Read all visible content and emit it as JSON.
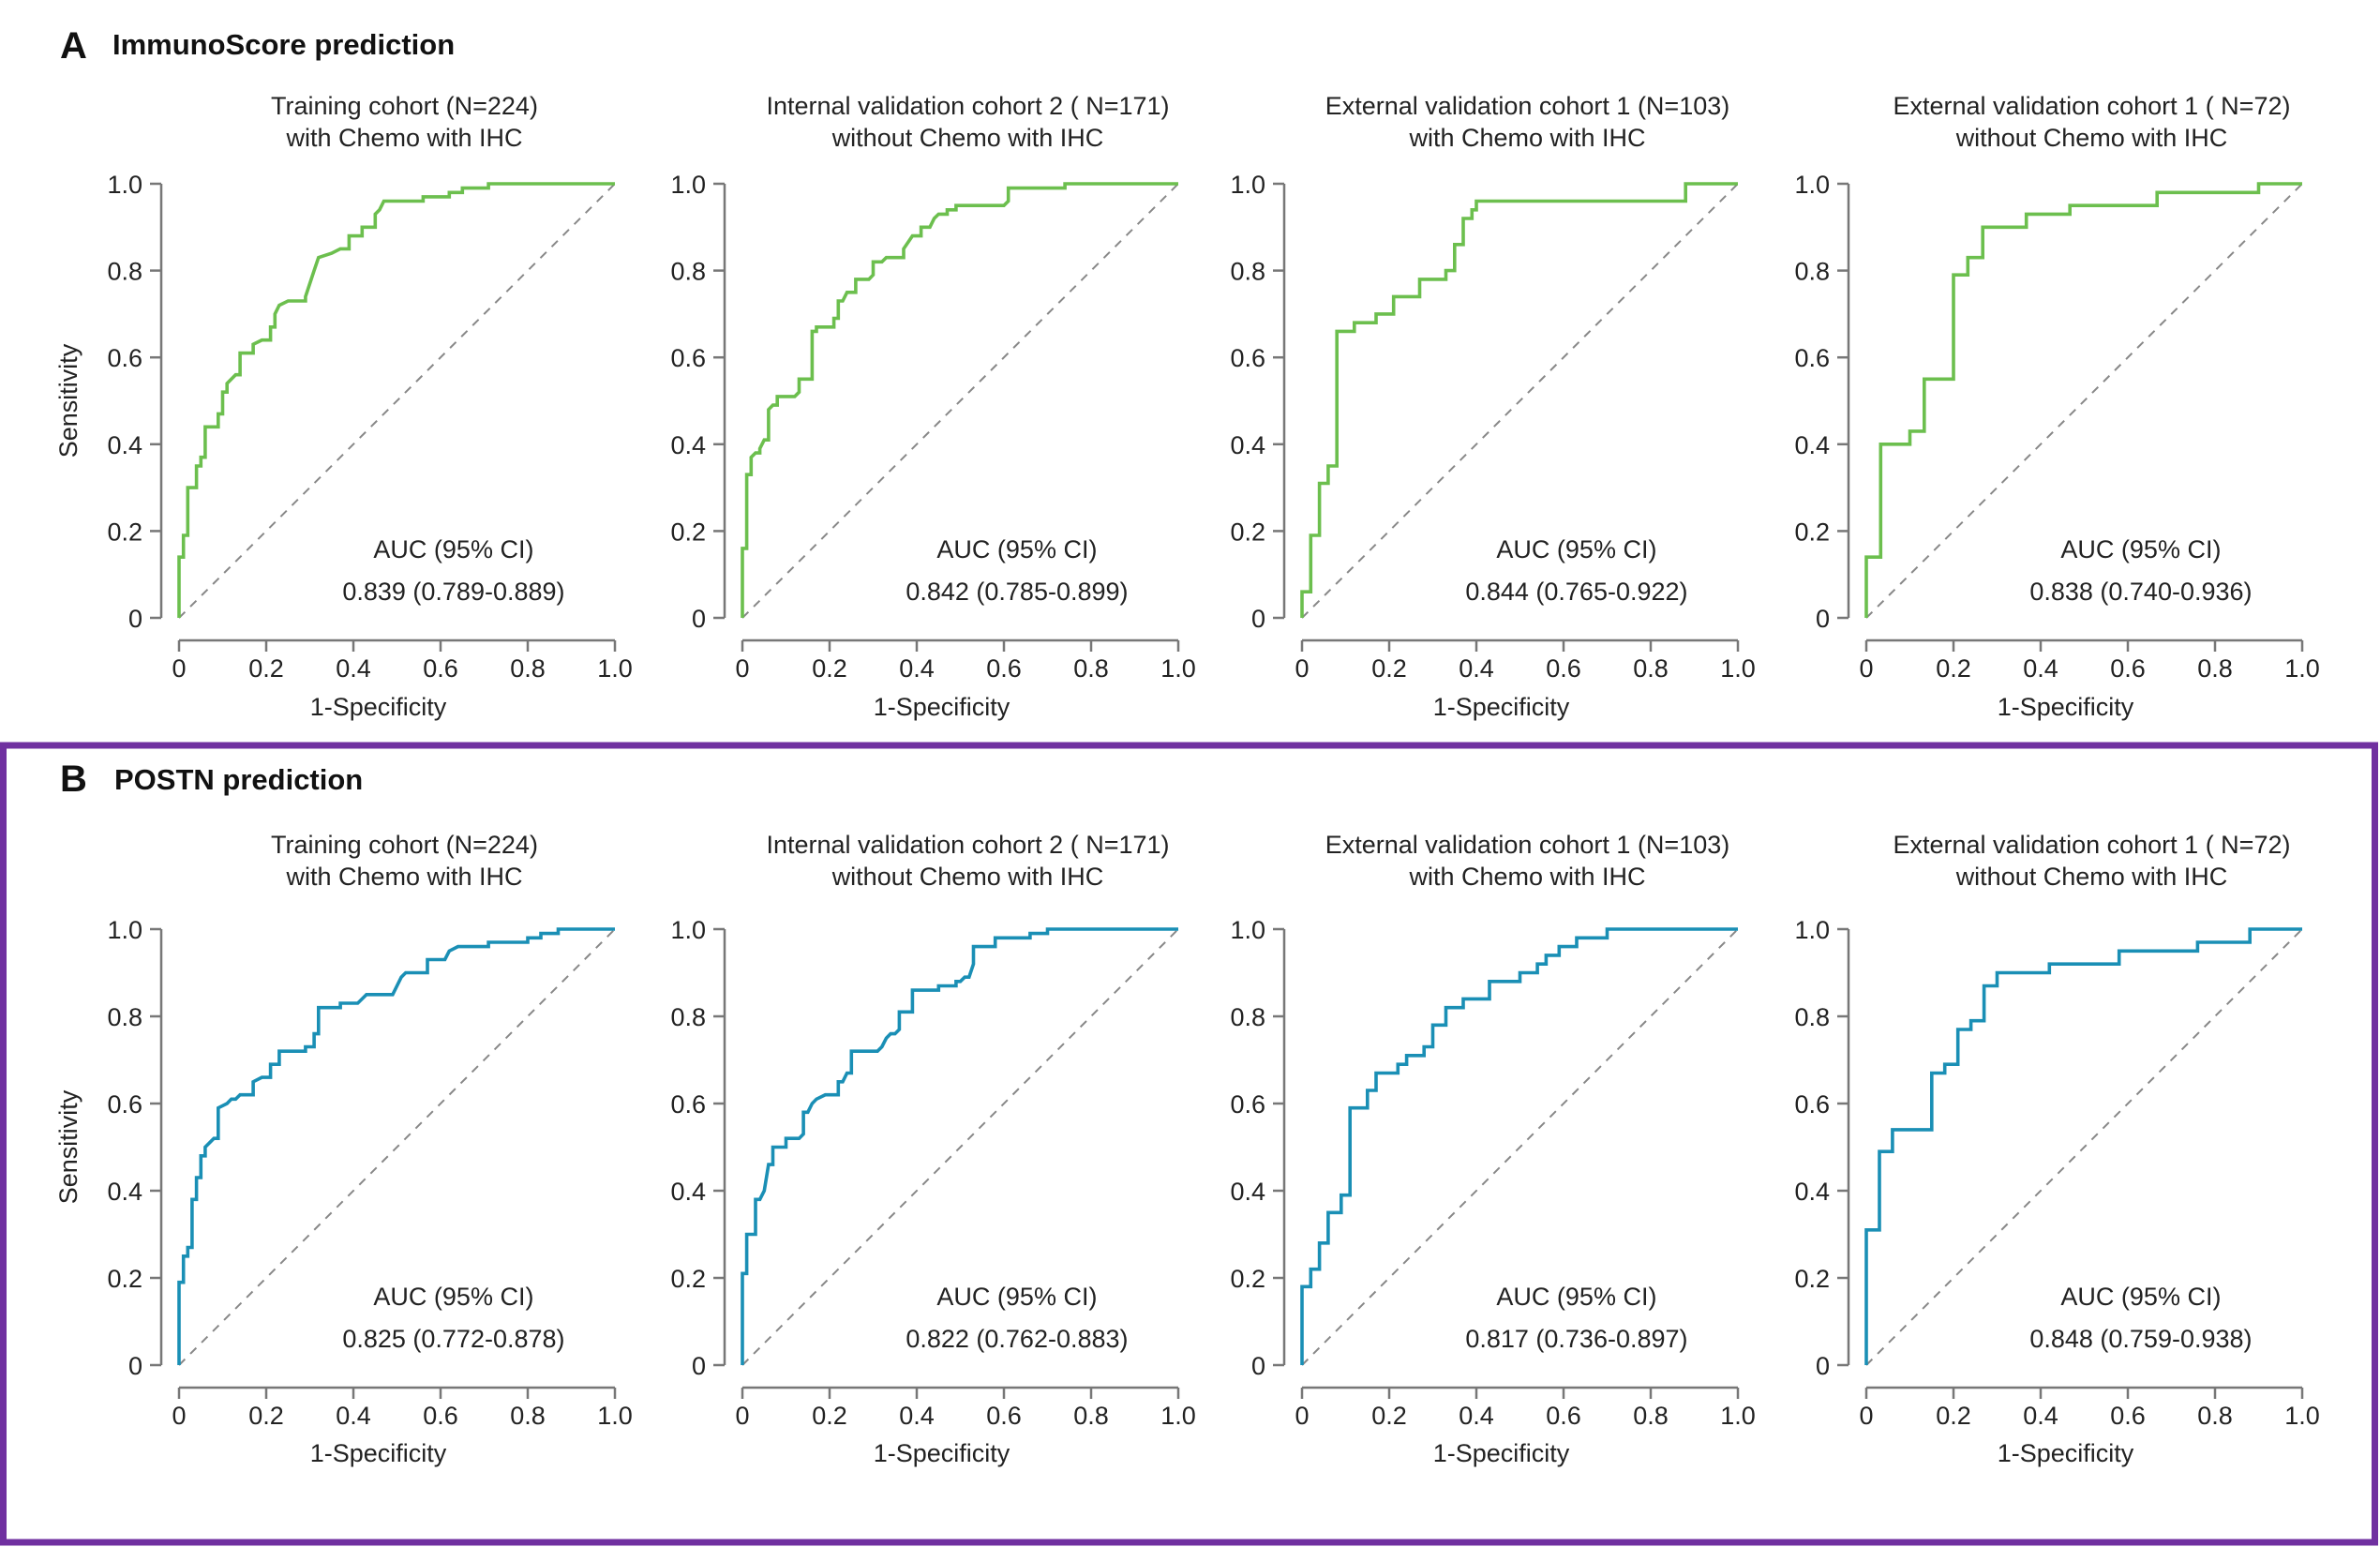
{
  "figure": {
    "panels": [
      {
        "letter": "A",
        "title": "ImmunoScore prediction",
        "color": "#6cbf4e"
      },
      {
        "letter": "B",
        "title": "POSTN prediction",
        "color": "#1a8fb5"
      }
    ],
    "highlight_color": "#7030a0",
    "diagonal_color": "#888888"
  },
  "chart_data": [
    {
      "type": "line",
      "panel": "A",
      "title": [
        "Training cohort (N=224)",
        "with Chemo with IHC"
      ],
      "xlabel": "1-Specificity",
      "ylabel": "Sensitivity",
      "xlim": [
        0,
        1
      ],
      "ylim": [
        0,
        1
      ],
      "xticks": [
        "0",
        "0.2",
        "0.4",
        "0.6",
        "0.8",
        "1.0"
      ],
      "yticks": [
        "0",
        "0.2",
        "0.4",
        "0.6",
        "0.8",
        "1.0"
      ],
      "grid": false,
      "reference_line": "diagonal-dashed",
      "annotation": {
        "header": "AUC (95% CI)",
        "value": "0.839 (0.789-0.889)"
      },
      "series": [
        {
          "name": "ImmunoScore",
          "color": "#6cbf4e",
          "x": [
            0,
            0,
            0.01,
            0.01,
            0.02,
            0.02,
            0.04,
            0.04,
            0.05,
            0.05,
            0.06,
            0.06,
            0.09,
            0.09,
            0.1,
            0.1,
            0.11,
            0.11,
            0.13,
            0.14,
            0.14,
            0.17,
            0.17,
            0.19,
            0.21,
            0.21,
            0.22,
            0.22,
            0.23,
            0.25,
            0.29,
            0.29,
            0.3,
            0.31,
            0.32,
            0.35,
            0.37,
            0.39,
            0.39,
            0.42,
            0.42,
            0.45,
            0.45,
            0.46,
            0.47,
            0.56,
            0.56,
            0.62,
            0.62,
            0.65,
            0.65,
            0.71,
            0.71,
            1.0
          ],
          "y": [
            0,
            0.14,
            0.14,
            0.19,
            0.19,
            0.3,
            0.3,
            0.35,
            0.35,
            0.37,
            0.37,
            0.44,
            0.44,
            0.47,
            0.47,
            0.52,
            0.52,
            0.54,
            0.56,
            0.56,
            0.61,
            0.61,
            0.63,
            0.64,
            0.64,
            0.67,
            0.67,
            0.7,
            0.72,
            0.73,
            0.73,
            0.74,
            0.77,
            0.8,
            0.83,
            0.84,
            0.85,
            0.85,
            0.88,
            0.88,
            0.9,
            0.9,
            0.93,
            0.94,
            0.96,
            0.96,
            0.97,
            0.97,
            0.98,
            0.98,
            0.99,
            0.99,
            1.0,
            1.0
          ]
        }
      ]
    },
    {
      "type": "line",
      "panel": "A",
      "title": [
        "Internal validation cohort 2 ( N=171)",
        "without Chemo with IHC"
      ],
      "xlabel": "1-Specificity",
      "ylabel": "",
      "xlim": [
        0,
        1
      ],
      "ylim": [
        0,
        1
      ],
      "xticks": [
        "0",
        "0.2",
        "0.4",
        "0.6",
        "0.8",
        "1.0"
      ],
      "yticks": [
        "0",
        "0.2",
        "0.4",
        "0.6",
        "0.8",
        "1.0"
      ],
      "grid": false,
      "reference_line": "diagonal-dashed",
      "annotation": {
        "header": "AUC (95% CI)",
        "value": "0.842 (0.785-0.899)"
      },
      "series": [
        {
          "name": "ImmunoScore",
          "color": "#6cbf4e",
          "x": [
            0,
            0,
            0.01,
            0.01,
            0.02,
            0.02,
            0.03,
            0.04,
            0.04,
            0.05,
            0.06,
            0.06,
            0.07,
            0.08,
            0.08,
            0.12,
            0.13,
            0.13,
            0.16,
            0.16,
            0.17,
            0.17,
            0.21,
            0.21,
            0.22,
            0.22,
            0.23,
            0.24,
            0.26,
            0.26,
            0.29,
            0.3,
            0.3,
            0.32,
            0.33,
            0.37,
            0.37,
            0.39,
            0.41,
            0.41,
            0.43,
            0.44,
            0.45,
            0.47,
            0.47,
            0.49,
            0.49,
            0.6,
            0.61,
            0.61,
            0.74,
            0.74,
            1.0
          ],
          "y": [
            0,
            0.16,
            0.16,
            0.33,
            0.33,
            0.37,
            0.38,
            0.38,
            0.39,
            0.41,
            0.41,
            0.48,
            0.49,
            0.49,
            0.51,
            0.51,
            0.52,
            0.55,
            0.55,
            0.66,
            0.66,
            0.67,
            0.67,
            0.69,
            0.69,
            0.73,
            0.73,
            0.75,
            0.75,
            0.78,
            0.78,
            0.79,
            0.82,
            0.82,
            0.83,
            0.83,
            0.85,
            0.88,
            0.88,
            0.9,
            0.9,
            0.92,
            0.93,
            0.93,
            0.94,
            0.94,
            0.95,
            0.95,
            0.96,
            0.99,
            0.99,
            1.0,
            1.0
          ]
        }
      ]
    },
    {
      "type": "line",
      "panel": "A",
      "title": [
        "External validation cohort 1 (N=103)",
        "with Chemo with IHC"
      ],
      "xlabel": "1-Specificity",
      "ylabel": "",
      "xlim": [
        0,
        1
      ],
      "ylim": [
        0,
        1
      ],
      "xticks": [
        "0",
        "0.2",
        "0.4",
        "0.6",
        "0.8",
        "1.0"
      ],
      "yticks": [
        "0",
        "0.2",
        "0.4",
        "0.6",
        "0.8",
        "1.0"
      ],
      "grid": false,
      "reference_line": "diagonal-dashed",
      "annotation": {
        "header": "AUC (95% CI)",
        "value": "0.844 (0.765-0.922)"
      },
      "series": [
        {
          "name": "ImmunoScore",
          "color": "#6cbf4e",
          "x": [
            0,
            0,
            0.02,
            0.02,
            0.04,
            0.04,
            0.06,
            0.06,
            0.08,
            0.08,
            0.12,
            0.12,
            0.17,
            0.17,
            0.21,
            0.21,
            0.27,
            0.27,
            0.33,
            0.33,
            0.35,
            0.35,
            0.37,
            0.37,
            0.39,
            0.39,
            0.4,
            0.4,
            0.88,
            0.88,
            1.0
          ],
          "y": [
            0,
            0.06,
            0.06,
            0.19,
            0.19,
            0.31,
            0.31,
            0.35,
            0.35,
            0.66,
            0.66,
            0.68,
            0.68,
            0.7,
            0.7,
            0.74,
            0.74,
            0.78,
            0.78,
            0.8,
            0.8,
            0.86,
            0.86,
            0.92,
            0.92,
            0.94,
            0.94,
            0.96,
            0.96,
            1.0,
            1.0
          ]
        }
      ]
    },
    {
      "type": "line",
      "panel": "A",
      "title": [
        "External validation cohort 1 ( N=72)",
        "without Chemo with IHC"
      ],
      "xlabel": "1-Specificity",
      "ylabel": "",
      "xlim": [
        0,
        1
      ],
      "ylim": [
        0,
        1
      ],
      "xticks": [
        "0",
        "0.2",
        "0.4",
        "0.6",
        "0.8",
        "1.0"
      ],
      "yticks": [
        "0",
        "0.2",
        "0.4",
        "0.6",
        "0.8",
        "1.0"
      ],
      "grid": false,
      "reference_line": "diagonal-dashed",
      "annotation": {
        "header": "AUC (95% CI)",
        "value": "0.838 (0.740-0.936)"
      },
      "series": [
        {
          "name": "ImmunoScore",
          "color": "#6cbf4e",
          "x": [
            0,
            0,
            0.033,
            0.033,
            0.1,
            0.1,
            0.133,
            0.133,
            0.2,
            0.2,
            0.233,
            0.233,
            0.267,
            0.267,
            0.367,
            0.367,
            0.467,
            0.467,
            0.667,
            0.667,
            0.9,
            0.9,
            1.0
          ],
          "y": [
            0,
            0.14,
            0.14,
            0.4,
            0.4,
            0.43,
            0.43,
            0.55,
            0.55,
            0.79,
            0.79,
            0.83,
            0.83,
            0.9,
            0.9,
            0.93,
            0.93,
            0.95,
            0.95,
            0.98,
            0.98,
            1.0,
            1.0
          ]
        }
      ]
    },
    {
      "type": "line",
      "panel": "B",
      "title": [
        "Training cohort (N=224)",
        "with Chemo with IHC"
      ],
      "xlabel": "1-Specificity",
      "ylabel": "Sensitivity",
      "xlim": [
        0,
        1
      ],
      "ylim": [
        0,
        1
      ],
      "xticks": [
        "0",
        "0.2",
        "0.4",
        "0.6",
        "0.8",
        "1.0"
      ],
      "yticks": [
        "0",
        "0.2",
        "0.4",
        "0.6",
        "0.8",
        "1.0"
      ],
      "grid": false,
      "reference_line": "diagonal-dashed",
      "annotation": {
        "header": "AUC (95% CI)",
        "value": "0.825 (0.772-0.878)"
      },
      "series": [
        {
          "name": "POSTN",
          "color": "#1a8fb5",
          "x": [
            0,
            0,
            0.01,
            0.01,
            0.02,
            0.02,
            0.03,
            0.03,
            0.04,
            0.04,
            0.05,
            0.05,
            0.06,
            0.06,
            0.07,
            0.08,
            0.09,
            0.09,
            0.11,
            0.12,
            0.13,
            0.14,
            0.17,
            0.17,
            0.19,
            0.21,
            0.21,
            0.23,
            0.23,
            0.29,
            0.29,
            0.31,
            0.31,
            0.32,
            0.32,
            0.37,
            0.37,
            0.41,
            0.42,
            0.43,
            0.49,
            0.5,
            0.51,
            0.52,
            0.57,
            0.57,
            0.61,
            0.62,
            0.64,
            0.71,
            0.71,
            0.8,
            0.8,
            0.83,
            0.83,
            0.87,
            0.87,
            1.0
          ],
          "y": [
            0,
            0.19,
            0.19,
            0.25,
            0.25,
            0.27,
            0.27,
            0.38,
            0.38,
            0.43,
            0.43,
            0.48,
            0.48,
            0.5,
            0.51,
            0.52,
            0.52,
            0.59,
            0.6,
            0.61,
            0.61,
            0.62,
            0.62,
            0.65,
            0.66,
            0.66,
            0.69,
            0.69,
            0.72,
            0.72,
            0.73,
            0.73,
            0.76,
            0.76,
            0.82,
            0.82,
            0.83,
            0.83,
            0.84,
            0.85,
            0.85,
            0.87,
            0.89,
            0.9,
            0.9,
            0.93,
            0.93,
            0.95,
            0.96,
            0.96,
            0.97,
            0.97,
            0.98,
            0.98,
            0.99,
            0.99,
            1.0,
            1.0
          ]
        }
      ]
    },
    {
      "type": "line",
      "panel": "B",
      "title": [
        "Internal validation cohort 2 ( N=171)",
        "without Chemo with IHC"
      ],
      "xlabel": "1-Specificity",
      "ylabel": "",
      "xlim": [
        0,
        1
      ],
      "ylim": [
        0,
        1
      ],
      "xticks": [
        "0",
        "0.2",
        "0.4",
        "0.6",
        "0.8",
        "1.0"
      ],
      "yticks": [
        "0",
        "0.2",
        "0.4",
        "0.6",
        "0.8",
        "1.0"
      ],
      "grid": false,
      "reference_line": "diagonal-dashed",
      "annotation": {
        "header": "AUC (95% CI)",
        "value": "0.822 (0.762-0.883)"
      },
      "series": [
        {
          "name": "POSTN",
          "color": "#1a8fb5",
          "x": [
            0,
            0,
            0.01,
            0.01,
            0.03,
            0.03,
            0.04,
            0.05,
            0.05,
            0.06,
            0.07,
            0.07,
            0.1,
            0.1,
            0.13,
            0.14,
            0.14,
            0.15,
            0.16,
            0.17,
            0.19,
            0.22,
            0.22,
            0.23,
            0.24,
            0.25,
            0.25,
            0.31,
            0.32,
            0.33,
            0.34,
            0.35,
            0.36,
            0.36,
            0.39,
            0.39,
            0.45,
            0.45,
            0.49,
            0.49,
            0.5,
            0.51,
            0.52,
            0.53,
            0.53,
            0.58,
            0.58,
            0.66,
            0.66,
            0.69,
            0.7,
            0.7,
            1.0
          ],
          "y": [
            0,
            0.21,
            0.21,
            0.3,
            0.3,
            0.38,
            0.38,
            0.4,
            0.4,
            0.46,
            0.46,
            0.5,
            0.5,
            0.52,
            0.52,
            0.53,
            0.58,
            0.58,
            0.6,
            0.61,
            0.62,
            0.62,
            0.65,
            0.65,
            0.67,
            0.67,
            0.72,
            0.72,
            0.73,
            0.75,
            0.76,
            0.76,
            0.77,
            0.81,
            0.81,
            0.86,
            0.86,
            0.87,
            0.87,
            0.88,
            0.88,
            0.89,
            0.89,
            0.92,
            0.96,
            0.96,
            0.98,
            0.98,
            0.99,
            0.99,
            0.99,
            1.0,
            1.0
          ]
        }
      ]
    },
    {
      "type": "line",
      "panel": "B",
      "title": [
        "External validation cohort 1 (N=103)",
        "with Chemo with IHC"
      ],
      "xlabel": "1-Specificity",
      "ylabel": "",
      "xlim": [
        0,
        1
      ],
      "ylim": [
        0,
        1
      ],
      "xticks": [
        "0",
        "0.2",
        "0.4",
        "0.6",
        "0.8",
        "1.0"
      ],
      "yticks": [
        "0",
        "0.2",
        "0.4",
        "0.6",
        "0.8",
        "1.0"
      ],
      "grid": false,
      "reference_line": "diagonal-dashed",
      "annotation": {
        "header": "AUC (95% CI)",
        "value": "0.817 (0.736-0.897)"
      },
      "series": [
        {
          "name": "POSTN",
          "color": "#1a8fb5",
          "x": [
            0,
            0,
            0.02,
            0.02,
            0.04,
            0.04,
            0.06,
            0.06,
            0.09,
            0.09,
            0.11,
            0.11,
            0.15,
            0.15,
            0.17,
            0.17,
            0.22,
            0.22,
            0.24,
            0.24,
            0.28,
            0.28,
            0.3,
            0.3,
            0.33,
            0.33,
            0.37,
            0.37,
            0.43,
            0.43,
            0.5,
            0.5,
            0.54,
            0.54,
            0.56,
            0.56,
            0.59,
            0.59,
            0.63,
            0.63,
            0.7,
            0.7,
            1.0
          ],
          "y": [
            0,
            0.18,
            0.18,
            0.22,
            0.22,
            0.28,
            0.28,
            0.35,
            0.35,
            0.39,
            0.39,
            0.59,
            0.59,
            0.63,
            0.63,
            0.67,
            0.67,
            0.69,
            0.69,
            0.71,
            0.71,
            0.73,
            0.73,
            0.78,
            0.78,
            0.82,
            0.82,
            0.84,
            0.84,
            0.88,
            0.88,
            0.9,
            0.9,
            0.92,
            0.92,
            0.94,
            0.94,
            0.96,
            0.96,
            0.98,
            0.98,
            1.0,
            1.0
          ]
        }
      ]
    },
    {
      "type": "line",
      "panel": "B",
      "title": [
        "External validation cohort 1 ( N=72)",
        "without Chemo with IHC"
      ],
      "xlabel": "1-Specificity",
      "ylabel": "",
      "xlim": [
        0,
        1
      ],
      "ylim": [
        0,
        1
      ],
      "xticks": [
        "0",
        "0.2",
        "0.4",
        "0.6",
        "0.8",
        "1.0"
      ],
      "yticks": [
        "0",
        "0.2",
        "0.4",
        "0.6",
        "0.8",
        "1.0"
      ],
      "grid": false,
      "reference_line": "diagonal-dashed",
      "annotation": {
        "header": "AUC (95% CI)",
        "value": "0.848 (0.759-0.938)"
      },
      "series": [
        {
          "name": "POSTN",
          "color": "#1a8fb5",
          "x": [
            0,
            0,
            0.03,
            0.03,
            0.06,
            0.06,
            0.15,
            0.15,
            0.18,
            0.18,
            0.21,
            0.21,
            0.24,
            0.24,
            0.27,
            0.27,
            0.3,
            0.3,
            0.42,
            0.42,
            0.58,
            0.58,
            0.76,
            0.76,
            0.88,
            0.88,
            1.0
          ],
          "y": [
            0,
            0.31,
            0.31,
            0.49,
            0.49,
            0.54,
            0.54,
            0.67,
            0.67,
            0.69,
            0.69,
            0.77,
            0.77,
            0.79,
            0.79,
            0.87,
            0.87,
            0.9,
            0.9,
            0.92,
            0.92,
            0.95,
            0.95,
            0.97,
            0.97,
            1.0,
            1.0
          ]
        }
      ]
    }
  ]
}
